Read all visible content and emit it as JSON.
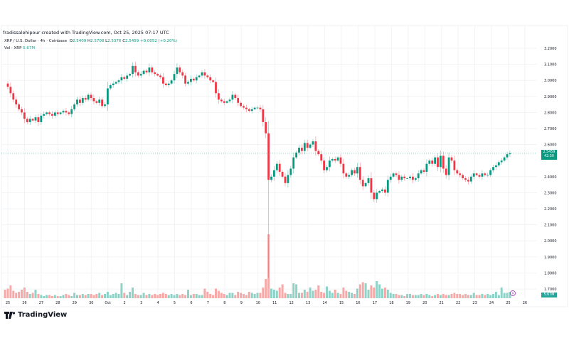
{
  "credit": "fradissalehipour created with TradingView.com, Oct 25, 2025 07:17 UTC",
  "legend": {
    "symbol": "XRP / U.S. Dollar · 4h · Coinbase",
    "o_label": "O",
    "o": "2.5409",
    "h_label": "H",
    "h": "2.5708",
    "l_label": "L",
    "l": "2.5376",
    "c_label": "C",
    "c": "2.5459",
    "change": "+0.0052 (+0.20%)",
    "vol_label": "Vol · XRP",
    "vol": "5.67M"
  },
  "price_label": {
    "value": "2.5459",
    "countdown": "42:30"
  },
  "volume_label": "5.67M",
  "logo": "TradingView",
  "colors": {
    "up": "#089981",
    "down": "#f23645",
    "up_vol": "#8fd3c8",
    "down_vol": "#f7a9a7",
    "grid": "#f2f3f5",
    "marker": "#9c27b0"
  },
  "chart_data": {
    "type": "candlestick",
    "title": "XRP / U.S. Dollar · 4h · Coinbase",
    "interval_hours": 4,
    "first_close": 2.98,
    "close": [
      2.98,
      2.96,
      2.92,
      2.88,
      2.85,
      2.82,
      2.8,
      2.76,
      2.74,
      2.76,
      2.75,
      2.77,
      2.74,
      2.78,
      2.79,
      2.8,
      2.79,
      2.78,
      2.8,
      2.79,
      2.8,
      2.81,
      2.8,
      2.79,
      2.82,
      2.85,
      2.88,
      2.86,
      2.89,
      2.88,
      2.91,
      2.89,
      2.87,
      2.86,
      2.88,
      2.84,
      2.85,
      2.95,
      2.97,
      2.98,
      2.99,
      3.0,
      3.02,
      3.01,
      3.03,
      3.04,
      3.09,
      3.05,
      3.03,
      3.04,
      3.06,
      3.05,
      3.08,
      3.05,
      3.04,
      3.03,
      3.02,
      2.98,
      2.97,
      2.98,
      3.0,
      3.04,
      3.08,
      3.05,
      3.03,
      2.98,
      2.99,
      3.01,
      3.0,
      3.02,
      3.03,
      3.05,
      3.03,
      3.02,
      3.0,
      2.99,
      2.92,
      2.88,
      2.87,
      2.86,
      2.87,
      2.88,
      2.91,
      2.89,
      2.86,
      2.84,
      2.83,
      2.82,
      2.81,
      2.82,
      2.83,
      2.83,
      2.82,
      2.74,
      2.67,
      2.38,
      2.4,
      2.44,
      2.48,
      2.43,
      2.4,
      2.36,
      2.41,
      2.45,
      2.52,
      2.55,
      2.58,
      2.56,
      2.61,
      2.58,
      2.6,
      2.62,
      2.56,
      2.54,
      2.5,
      2.44,
      2.46,
      2.5,
      2.51,
      2.5,
      2.52,
      2.48,
      2.42,
      2.4,
      2.41,
      2.44,
      2.42,
      2.46,
      2.38,
      2.34,
      2.36,
      2.39,
      2.3,
      2.26,
      2.3,
      2.31,
      2.32,
      2.3,
      2.38,
      2.4,
      2.42,
      2.41,
      2.38,
      2.4,
      2.39,
      2.39,
      2.4,
      2.38,
      2.39,
      2.42,
      2.44,
      2.43,
      2.48,
      2.5,
      2.48,
      2.52,
      2.46,
      2.53,
      2.45,
      2.41,
      2.52,
      2.5,
      2.44,
      2.42,
      2.41,
      2.39,
      2.38,
      2.37,
      2.4,
      2.42,
      2.41,
      2.4,
      2.42,
      2.41,
      2.41,
      2.44,
      2.46,
      2.47,
      2.49,
      2.5,
      2.52,
      2.54,
      2.5459
    ],
    "crash_low": 1.77,
    "volume_millions": [
      8,
      9,
      12,
      7,
      5,
      6,
      8,
      10,
      6,
      4,
      5,
      8,
      4,
      3,
      2,
      3,
      3,
      2,
      3,
      2,
      2,
      3,
      4,
      3,
      2,
      5,
      3,
      3,
      4,
      3,
      4,
      4,
      3,
      4,
      5,
      3,
      4,
      6,
      3,
      4,
      5,
      4,
      14,
      5,
      3,
      6,
      10,
      4,
      3,
      3,
      5,
      3,
      4,
      3,
      4,
      3,
      4,
      5,
      4,
      3,
      4,
      3,
      4,
      3,
      4,
      3,
      8,
      3,
      4,
      4,
      3,
      3,
      9,
      6,
      4,
      3,
      9,
      7,
      5,
      4,
      3,
      5,
      5,
      3,
      6,
      5,
      4,
      3,
      6,
      5,
      4,
      5,
      5,
      10,
      18,
      60,
      9,
      8,
      7,
      10,
      13,
      5,
      4,
      4,
      14,
      13,
      5,
      5,
      8,
      6,
      10,
      7,
      8,
      12,
      6,
      5,
      11,
      7,
      5,
      8,
      5,
      4,
      10,
      7,
      6,
      5,
      4,
      9,
      13,
      15,
      14,
      8,
      12,
      10,
      16,
      13,
      9,
      10,
      8,
      5,
      4,
      4,
      3,
      3,
      2,
      4,
      4,
      3,
      3,
      3,
      4,
      3,
      4,
      3,
      2,
      3,
      4,
      3,
      4,
      3,
      3,
      4,
      5,
      4,
      4,
      3,
      4,
      3,
      3,
      5,
      3,
      3,
      4,
      3,
      4,
      3,
      4,
      6,
      3,
      10,
      5,
      5,
      6
    ],
    "y_ticks": [
      "3.2000",
      "3.1000",
      "3.0000",
      "2.9000",
      "2.8000",
      "2.7000",
      "2.6000",
      "2.4000",
      "2.3000",
      "2.2000",
      "2.1000",
      "2.0000",
      "1.9000",
      "1.8000",
      "1.7000"
    ],
    "x_ticks": [
      "25",
      "26",
      "27",
      "28",
      "29",
      "30",
      "Oct",
      "2",
      "3",
      "4",
      "5",
      "6",
      "7",
      "8",
      "9",
      "10",
      "11",
      "12",
      "13",
      "14",
      "15",
      "16",
      "17",
      "18",
      "19",
      "20",
      "21",
      "22",
      "23",
      "24",
      "25",
      "26"
    ],
    "ylim": [
      1.68,
      3.23
    ],
    "grid": true
  }
}
